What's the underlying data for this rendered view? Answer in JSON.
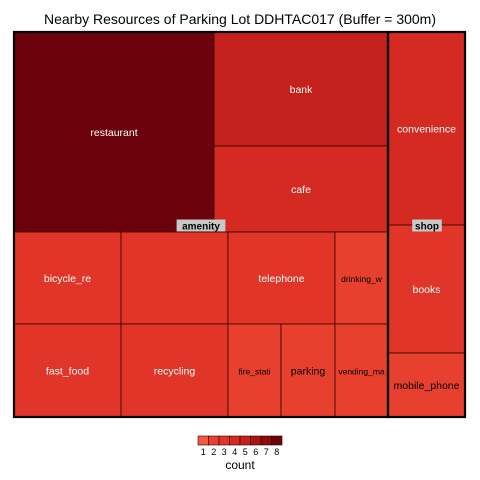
{
  "chart_data": {
    "type": "treemap",
    "title": "Nearby Resources of Parking Lot DDHTAC017 (Buffer = 300m)",
    "groups": [
      {
        "name": "amenity",
        "items": [
          {
            "label": "restaurant",
            "count": 8
          },
          {
            "label": "bank",
            "count": 5
          },
          {
            "label": "cafe",
            "count": 4
          },
          {
            "label": "bicycle_re",
            "count": 3
          },
          {
            "label": "",
            "count": 3
          },
          {
            "label": "telephone",
            "count": 3
          },
          {
            "label": "drinking_w",
            "count": 2
          },
          {
            "label": "fast_food",
            "count": 3
          },
          {
            "label": "recycling",
            "count": 3
          },
          {
            "label": "fire_stati",
            "count": 2
          },
          {
            "label": "parking",
            "count": 2
          },
          {
            "label": "vending_ma",
            "count": 2
          }
        ]
      },
      {
        "name": "shop",
        "items": [
          {
            "label": "convenience",
            "count": 4
          },
          {
            "label": "books",
            "count": 3
          },
          {
            "label": "mobile_phone",
            "count": 2
          }
        ]
      }
    ],
    "legend": {
      "title": "count",
      "ticks": [
        "1",
        "2",
        "3",
        "4",
        "5",
        "6",
        "7",
        "8"
      ],
      "colors": [
        "#f05a40",
        "#e8402f",
        "#e03528",
        "#d42a22",
        "#c4201c",
        "#a81314",
        "#8a0a10",
        "#6b020c"
      ]
    }
  }
}
